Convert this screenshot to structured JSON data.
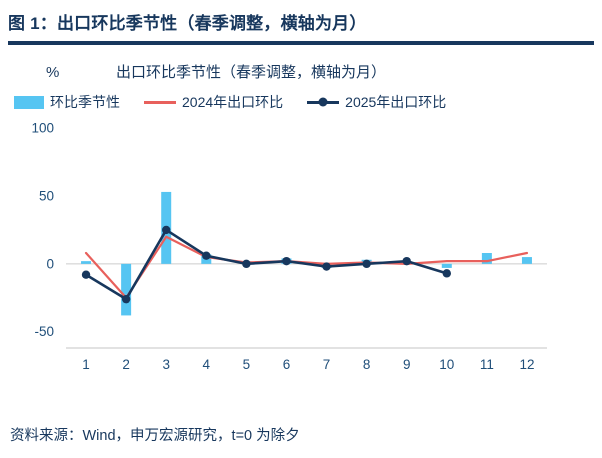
{
  "header": {
    "title": "图 1：出口环比季节性（春季调整，横轴为月）"
  },
  "chart_data": {
    "type": "bar+line",
    "title": "出口环比季节性（春季调整，横轴为月）",
    "ylabel": "%",
    "categories": [
      "1",
      "2",
      "3",
      "4",
      "5",
      "6",
      "7",
      "8",
      "9",
      "10",
      "11",
      "12"
    ],
    "yticks": [
      100,
      50,
      0,
      -50
    ],
    "ylim": [
      -62,
      106
    ],
    "grid": "zero-line-only",
    "legend_position": "top",
    "series": [
      {
        "name": "环比季节性",
        "type": "bar",
        "color": "#56C5F2",
        "values": [
          2,
          -38,
          53,
          7,
          2,
          4,
          -3,
          3,
          2,
          -3,
          8,
          5
        ]
      },
      {
        "name": "2024年出口环比",
        "type": "line",
        "color": "#E8605C",
        "values": [
          8,
          -25,
          20,
          5,
          1,
          2,
          0,
          1,
          0,
          2,
          2,
          8
        ]
      },
      {
        "name": "2025年出口环比",
        "type": "line",
        "color": "#17375D",
        "marker": true,
        "values": [
          -8,
          -26,
          25,
          6,
          0,
          2,
          -2,
          0,
          2,
          -7,
          null,
          null
        ]
      }
    ]
  },
  "footer": {
    "source": "资料来源：Wind，申万宏源研究，t=0 为除夕"
  }
}
